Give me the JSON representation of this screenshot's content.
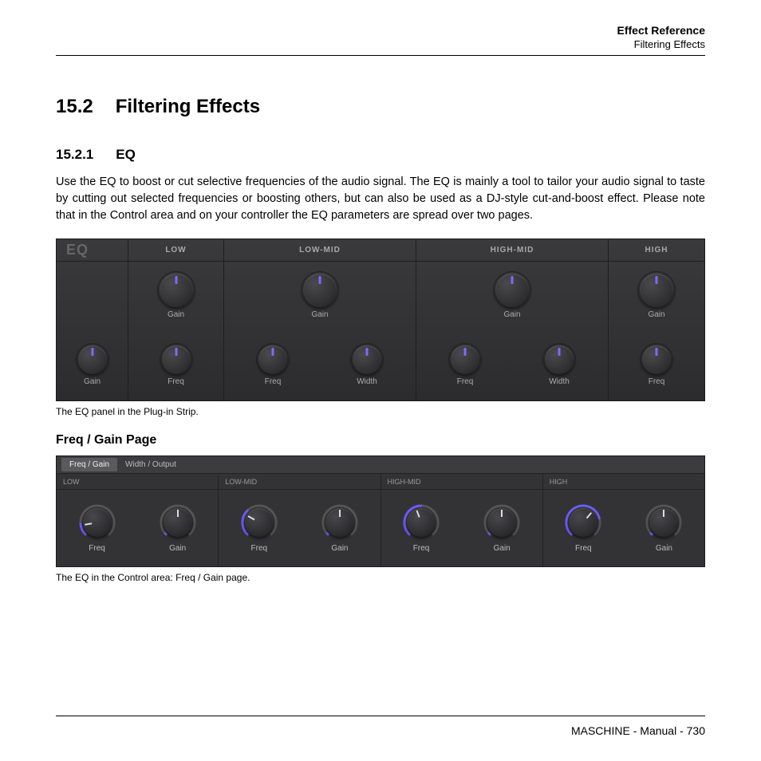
{
  "header": {
    "title": "Effect Reference",
    "subtitle": "Filtering Effects"
  },
  "section": {
    "number": "15.2",
    "title": "Filtering Effects"
  },
  "subsection": {
    "number": "15.2.1",
    "title": "EQ"
  },
  "body": "Use the EQ to boost or cut selective frequencies of the audio signal. The EQ is mainly a tool to tailor your audio signal to taste by cutting out selected frequencies or boosting others, but can also be used as a DJ-style cut-and-boost effect. Please note that in the Control area and on your controller the EQ parameters are spread over two pages.",
  "panel1": {
    "title": "EQ",
    "bands": [
      "LOW",
      "LOW-MID",
      "HIGH-MID",
      "HIGH"
    ],
    "gain_label": "Gain",
    "freq_label": "Freq",
    "width_label": "Width",
    "knob_indicator_color": "#7a6cff",
    "knob_bg_dark": "#222222",
    "knob_bg_light": "#4a4a4e"
  },
  "caption1": "The EQ panel in the Plug-in Strip.",
  "subhead": "Freq / Gain Page",
  "panel2": {
    "tabs": [
      "Freq / Gain",
      "Width / Output"
    ],
    "active_tab": 0,
    "bands": [
      "LOW",
      "LOW-MID",
      "HIGH-MID",
      "HIGH"
    ],
    "freq_label": "Freq",
    "gain_label": "Gain",
    "arc_color": "#6a5cff",
    "arc_bg": "#555555",
    "knob_angles": {
      "freq": [
        -100,
        -60,
        -20,
        40
      ],
      "gain": [
        0,
        0,
        0,
        0
      ]
    },
    "arc_sweeps": {
      "freq": [
        40,
        90,
        135,
        210
      ],
      "gain": [
        5,
        5,
        5,
        5
      ]
    }
  },
  "caption2": "The EQ in the Control area: Freq / Gain page.",
  "footer": "MASCHINE - Manual - 730"
}
